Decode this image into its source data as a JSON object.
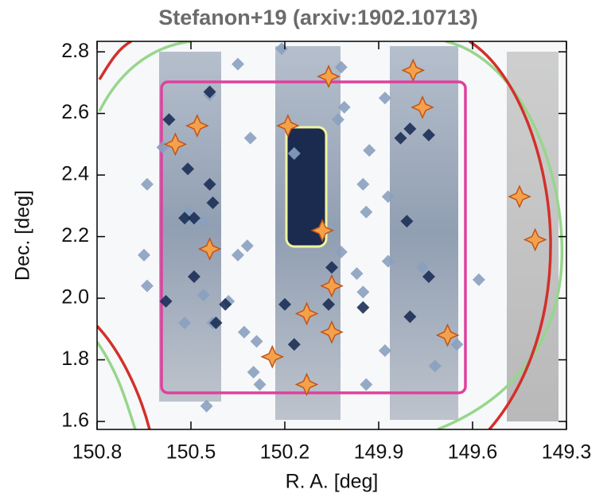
{
  "chart_data": {
    "type": "scatter",
    "title": "Stefanon+19 (arxiv:1902.10713)",
    "x_label": "R. A. [deg]",
    "y_label": "Dec. [deg]",
    "xlim": [
      150.8,
      149.3
    ],
    "xticks": [
      150.8,
      150.5,
      150.2,
      149.9,
      149.6,
      149.3
    ],
    "ylim": [
      1.574,
      2.834
    ],
    "yticks": [
      1.6,
      1.8,
      {
        "value": 2.0,
        "label": "2.0"
      },
      2.2,
      2.4,
      2.6,
      2.8
    ],
    "series": [
      {
        "color": "#8aa0bf",
        "marker": "diamond",
        "x": [
          150.35,
          150.21,
          150.02,
          149.88,
          150.59,
          150.44,
          150.64,
          150.51,
          150.46,
          150.65,
          150.35,
          150.32,
          150.31,
          150.17,
          150.01,
          150.03,
          149.93,
          149.95,
          149.94,
          149.87,
          150.02,
          149.97,
          149.87,
          149.95,
          149.76,
          149.58,
          150.64,
          150.46,
          150.38,
          150.43,
          150.52,
          150.33,
          150.29,
          150.3,
          150.28,
          149.94,
          149.72,
          149.65,
          150.45,
          149.88
        ],
        "values": [
          2.76,
          2.81,
          2.75,
          2.65,
          2.49,
          2.66,
          2.37,
          2.28,
          2.25,
          2.14,
          2.14,
          2.17,
          2.52,
          2.47,
          2.62,
          2.58,
          2.48,
          2.37,
          2.28,
          2.33,
          2.15,
          2.08,
          2.12,
          2.02,
          2.1,
          2.06,
          2.04,
          2.01,
          1.99,
          1.92,
          1.92,
          1.89,
          1.86,
          1.76,
          1.72,
          1.72,
          1.78,
          1.85,
          1.65,
          1.83
        ]
      },
      {
        "color": "#1c2f55",
        "marker": "diamond",
        "x": [
          150.57,
          150.44,
          150.51,
          150.44,
          150.52,
          150.49,
          150.43,
          150.58,
          150.49,
          150.39,
          150.42,
          150.2,
          150.17,
          150.05,
          149.83,
          149.8,
          149.74,
          149.81,
          149.74,
          149.8,
          150.06,
          149.95
        ],
        "values": [
          2.58,
          2.67,
          2.42,
          2.37,
          2.26,
          2.26,
          2.31,
          1.99,
          2.07,
          1.98,
          1.92,
          1.98,
          1.85,
          2.1,
          2.52,
          2.55,
          2.53,
          2.25,
          2.07,
          1.94,
          1.98,
          1.97
        ]
      },
      {
        "color": "#f5a14a",
        "marker": "star",
        "x": [
          150.06,
          149.79,
          149.76,
          150.48,
          150.19,
          150.55,
          149.45,
          149.4,
          150.08,
          150.44,
          150.05,
          150.13,
          150.05,
          149.68,
          150.24,
          150.13
        ],
        "values": [
          2.72,
          2.74,
          2.62,
          2.56,
          2.56,
          2.5,
          2.33,
          2.19,
          2.22,
          2.16,
          2.04,
          1.95,
          1.89,
          1.88,
          1.81,
          1.72
        ]
      }
    ]
  }
}
